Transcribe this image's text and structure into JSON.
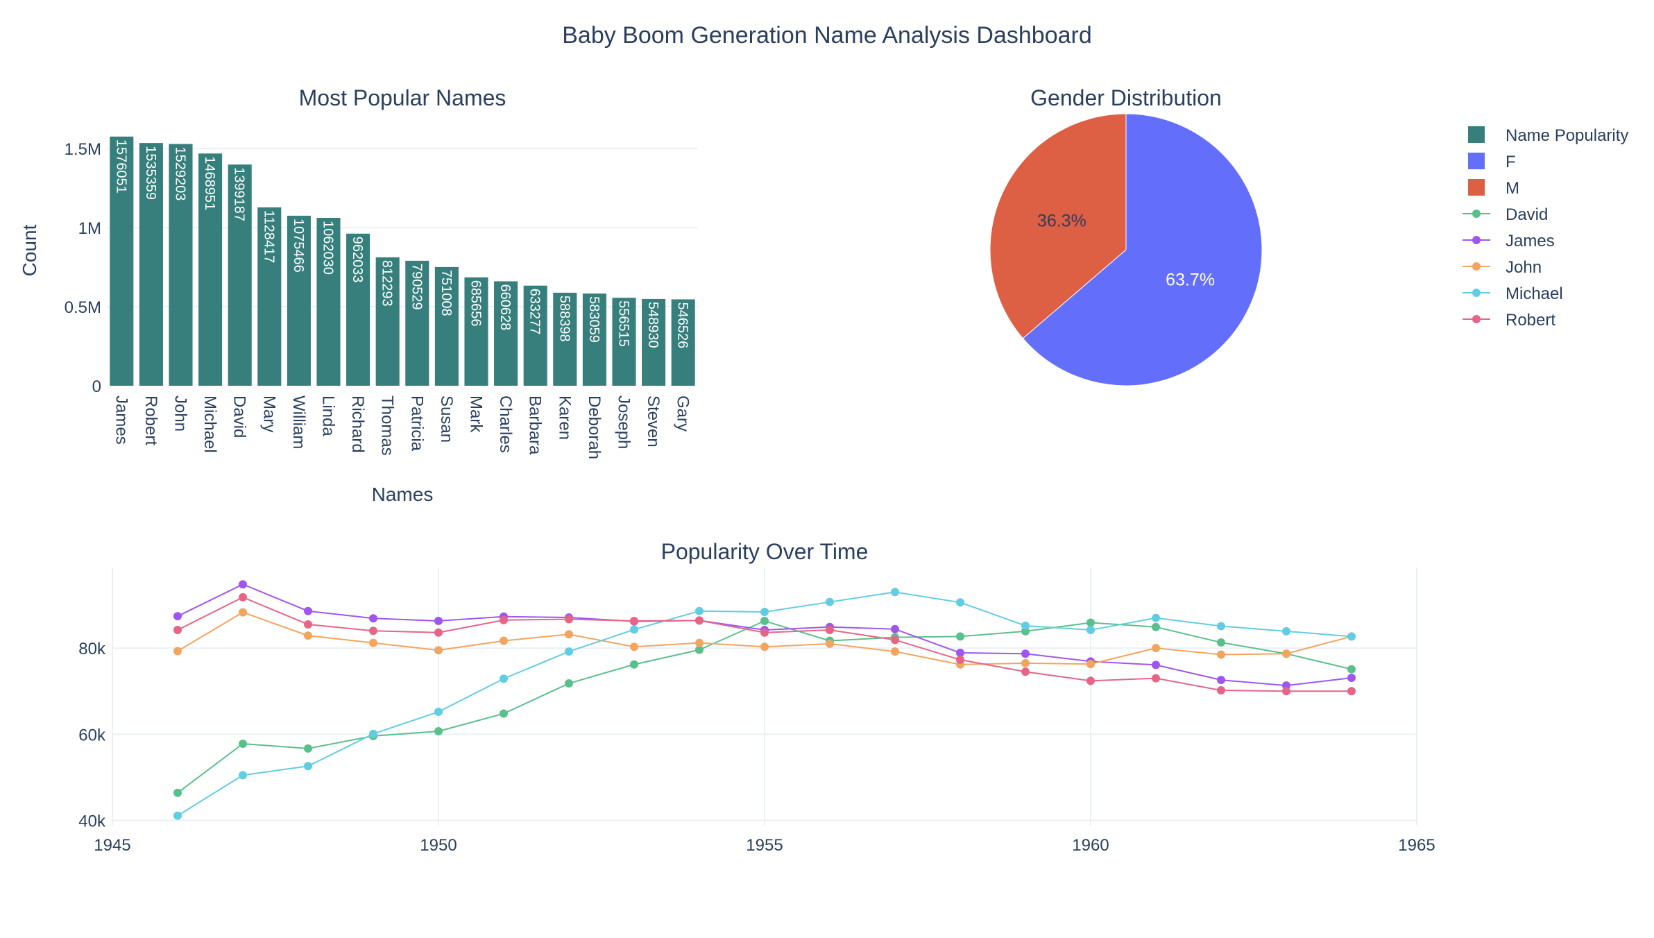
{
  "title": "Baby Boom Generation Name Analysis Dashboard",
  "colors": {
    "bar": "#367f7c",
    "F": "#636efa",
    "M": "#dd5f44",
    "David": "#59c08c",
    "James": "#9f56ee",
    "John": "#f2a55f",
    "Michael": "#61cde2",
    "Robert": "#e66587",
    "text": "#2a3f5f",
    "grid": "#ebf0f8"
  },
  "legend": [
    {
      "label": "Name Popularity",
      "kind": "square",
      "color_key": "bar"
    },
    {
      "label": "F",
      "kind": "square",
      "color_key": "F"
    },
    {
      "label": "M",
      "kind": "square",
      "color_key": "M"
    },
    {
      "label": "David",
      "kind": "line",
      "color_key": "David"
    },
    {
      "label": "James",
      "kind": "line",
      "color_key": "James"
    },
    {
      "label": "John",
      "kind": "line",
      "color_key": "John"
    },
    {
      "label": "Michael",
      "kind": "line",
      "color_key": "Michael"
    },
    {
      "label": "Robert",
      "kind": "line",
      "color_key": "Robert"
    }
  ],
  "chart_data": [
    {
      "type": "bar",
      "title": "Most Popular Names",
      "xlabel": "Names",
      "ylabel": "Count",
      "ylim": [
        0,
        1650000
      ],
      "yticks": [
        0,
        500000,
        1000000,
        1500000
      ],
      "ytick_labels": [
        "0",
        "0.5M",
        "1M",
        "1.5M"
      ],
      "categories": [
        "James",
        "Robert",
        "John",
        "Michael",
        "David",
        "Mary",
        "William",
        "Linda",
        "Richard",
        "Thomas",
        "Patricia",
        "Susan",
        "Mark",
        "Charles",
        "Barbara",
        "Karen",
        "Deborah",
        "Joseph",
        "Steven",
        "Gary"
      ],
      "values": [
        1576051,
        1535359,
        1529203,
        1468951,
        1399187,
        1128417,
        1075466,
        1062030,
        962033,
        812293,
        790529,
        751008,
        685656,
        660628,
        633277,
        588398,
        583059,
        556515,
        548930,
        546526
      ],
      "series_name": "Name Popularity"
    },
    {
      "type": "pie",
      "title": "Gender Distribution",
      "labels": [
        "F",
        "M"
      ],
      "values": [
        63.7,
        36.3
      ],
      "text_labels": [
        "63.7%",
        "36.3%"
      ]
    },
    {
      "type": "line",
      "title": "Popularity Over Time",
      "xlim": [
        1945,
        1965
      ],
      "xticks": [
        1945,
        1950,
        1955,
        1960,
        1965
      ],
      "xtick_labels": [
        "1945",
        "1950",
        "1955",
        "1960",
        "1965"
      ],
      "ylim": [
        38800,
        98700
      ],
      "yticks": [
        40000,
        60000,
        80000
      ],
      "ytick_labels": [
        "40k",
        "60k",
        "80k"
      ],
      "x": [
        1946,
        1947,
        1948,
        1949,
        1950,
        1951,
        1952,
        1953,
        1954,
        1955,
        1956,
        1957,
        1958,
        1959,
        1960,
        1961,
        1962,
        1963,
        1964
      ],
      "series": [
        {
          "name": "David",
          "values": [
            46400,
            57800,
            56700,
            59600,
            60700,
            64800,
            71800,
            76200,
            79600,
            86300,
            81700,
            82500,
            82700,
            83900,
            85900,
            84900,
            81300,
            78700,
            75100
          ]
        },
        {
          "name": "James",
          "values": [
            87400,
            94800,
            88600,
            86900,
            86300,
            87300,
            87100,
            86200,
            86400,
            84200,
            84900,
            84400,
            78900,
            78700,
            76900,
            76100,
            72600,
            71300,
            73100
          ]
        },
        {
          "name": "John",
          "values": [
            79300,
            88300,
            82900,
            81200,
            79500,
            81700,
            83200,
            80300,
            81200,
            80300,
            81000,
            79200,
            76200,
            76500,
            76300,
            80000,
            78500,
            78700,
            82700
          ]
        },
        {
          "name": "Michael",
          "values": [
            41100,
            50500,
            52600,
            60100,
            65200,
            72900,
            79200,
            84300,
            88600,
            88400,
            90700,
            93000,
            90600,
            85200,
            84200,
            87000,
            85100,
            83900,
            82700
          ]
        },
        {
          "name": "Robert",
          "values": [
            84200,
            91800,
            85500,
            84000,
            83600,
            86500,
            86700,
            86300,
            86400,
            83600,
            84200,
            81900,
            77300,
            74500,
            72400,
            73000,
            70200,
            70000,
            70000
          ]
        }
      ]
    }
  ]
}
